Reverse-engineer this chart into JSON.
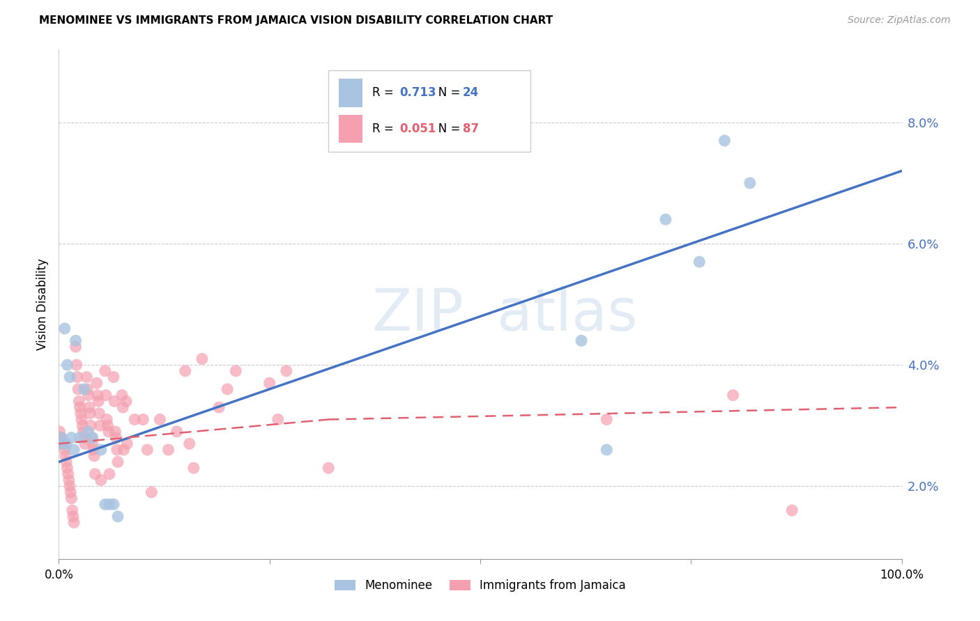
{
  "title": "MENOMINEE VS IMMIGRANTS FROM JAMAICA VISION DISABILITY CORRELATION CHART",
  "source": "Source: ZipAtlas.com",
  "ylabel": "Vision Disability",
  "xlim": [
    0.0,
    1.0
  ],
  "ylim": [
    0.008,
    0.092
  ],
  "yticks": [
    0.02,
    0.04,
    0.06,
    0.08
  ],
  "ytick_labels": [
    "2.0%",
    "4.0%",
    "6.0%",
    "8.0%"
  ],
  "xticks": [
    0.0,
    0.25,
    0.5,
    0.75,
    1.0
  ],
  "xtick_labels": [
    "0.0%",
    "",
    "",
    "",
    "100.0%"
  ],
  "menominee_color": "#a8c4e0",
  "jamaica_color": "#f4a0b0",
  "menominee_line_color": "#4472c4",
  "jamaica_line_color": "#e06070",
  "R_menominee": "0.713",
  "N_menominee": "24",
  "R_jamaica": "0.051",
  "N_jamaica": "87",
  "watermark_zip": "ZIP",
  "watermark_atlas": "atlas",
  "background_color": "#ffffff",
  "grid_color": "#cccccc",
  "menominee_x": [
    0.003,
    0.005,
    0.007,
    0.009,
    0.01,
    0.013,
    0.015,
    0.018,
    0.02,
    0.025,
    0.03,
    0.035,
    0.04,
    0.05,
    0.055,
    0.06,
    0.065,
    0.07,
    0.62,
    0.65,
    0.72,
    0.76,
    0.79,
    0.82
  ],
  "menominee_y": [
    0.028,
    0.027,
    0.046,
    0.027,
    0.04,
    0.038,
    0.028,
    0.026,
    0.044,
    0.028,
    0.036,
    0.029,
    0.028,
    0.026,
    0.017,
    0.017,
    0.017,
    0.015,
    0.044,
    0.026,
    0.064,
    0.057,
    0.077,
    0.07
  ],
  "jamaica_x": [
    0.001,
    0.002,
    0.003,
    0.004,
    0.005,
    0.006,
    0.007,
    0.008,
    0.009,
    0.01,
    0.011,
    0.012,
    0.013,
    0.014,
    0.015,
    0.016,
    0.017,
    0.018,
    0.02,
    0.021,
    0.022,
    0.023,
    0.024,
    0.025,
    0.026,
    0.027,
    0.028,
    0.029,
    0.03,
    0.031,
    0.033,
    0.034,
    0.035,
    0.036,
    0.037,
    0.038,
    0.039,
    0.04,
    0.041,
    0.042,
    0.043,
    0.045,
    0.046,
    0.047,
    0.048,
    0.049,
    0.05,
    0.055,
    0.056,
    0.057,
    0.058,
    0.059,
    0.06,
    0.065,
    0.066,
    0.067,
    0.068,
    0.069,
    0.07,
    0.075,
    0.076,
    0.077,
    0.08,
    0.081,
    0.09,
    0.1,
    0.105,
    0.11,
    0.12,
    0.13,
    0.14,
    0.15,
    0.155,
    0.16,
    0.17,
    0.19,
    0.2,
    0.21,
    0.25,
    0.26,
    0.27,
    0.32,
    0.65,
    0.8,
    0.87
  ],
  "jamaica_y": [
    0.029,
    0.028,
    0.028,
    0.027,
    0.027,
    0.027,
    0.026,
    0.025,
    0.024,
    0.023,
    0.022,
    0.021,
    0.02,
    0.019,
    0.018,
    0.016,
    0.015,
    0.014,
    0.043,
    0.04,
    0.038,
    0.036,
    0.034,
    0.033,
    0.032,
    0.031,
    0.03,
    0.029,
    0.028,
    0.027,
    0.038,
    0.036,
    0.035,
    0.033,
    0.032,
    0.03,
    0.028,
    0.027,
    0.026,
    0.025,
    0.022,
    0.037,
    0.035,
    0.034,
    0.032,
    0.03,
    0.021,
    0.039,
    0.035,
    0.031,
    0.03,
    0.029,
    0.022,
    0.038,
    0.034,
    0.029,
    0.028,
    0.026,
    0.024,
    0.035,
    0.033,
    0.026,
    0.034,
    0.027,
    0.031,
    0.031,
    0.026,
    0.019,
    0.031,
    0.026,
    0.029,
    0.039,
    0.027,
    0.023,
    0.041,
    0.033,
    0.036,
    0.039,
    0.037,
    0.031,
    0.039,
    0.023,
    0.031,
    0.035,
    0.016
  ],
  "menominee_trendline_x": [
    0.0,
    1.0
  ],
  "menominee_trendline_y": [
    0.024,
    0.072
  ],
  "jamaica_trendline_x": [
    0.0,
    0.32
  ],
  "jamaica_trendline_y": [
    0.027,
    0.031
  ]
}
